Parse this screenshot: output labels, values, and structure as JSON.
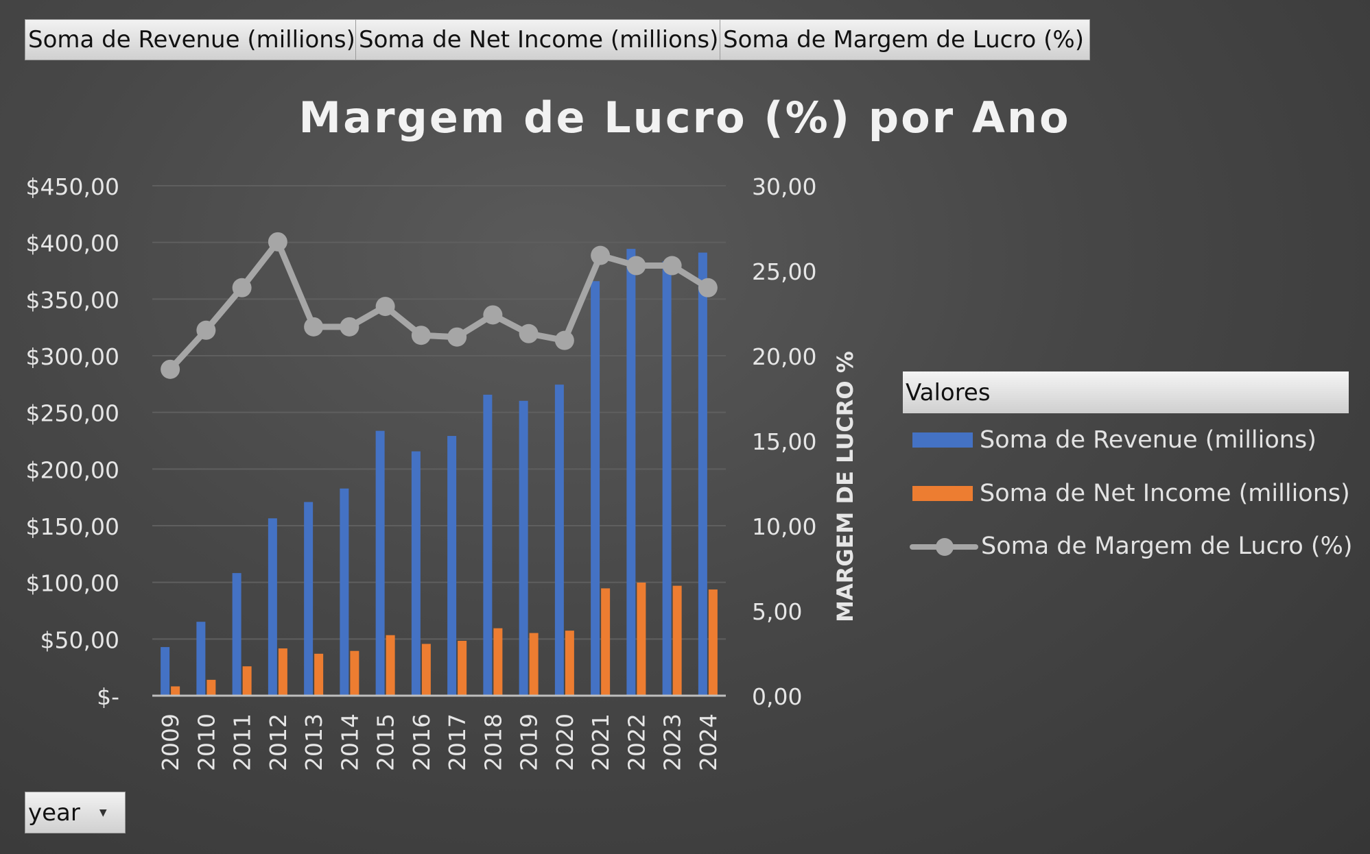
{
  "field_buttons": [
    {
      "label": "Soma de Revenue (millions)"
    },
    {
      "label": "Soma de Net Income (millions)"
    },
    {
      "label": "Soma de Margem de Lucro (%)"
    }
  ],
  "legend": {
    "header": "Valores",
    "items": [
      {
        "label": "Soma de Revenue (millions)",
        "color": "#4472C4"
      },
      {
        "label": "Soma de Net Income (millions)",
        "color": "#ED7D31"
      },
      {
        "label": "Soma de Margem de Lucro (%)",
        "color": "#A6A6A6"
      }
    ]
  },
  "filter": {
    "label": "year"
  },
  "chart_data": {
    "type": "bar",
    "title": "Margem de Lucro (%) por Ano",
    "xlabel": "",
    "ylabel": "",
    "y2label": "MARGEM DE LUCRO %",
    "categories": [
      "2009",
      "2010",
      "2011",
      "2012",
      "2013",
      "2014",
      "2015",
      "2016",
      "2017",
      "2018",
      "2019",
      "2020",
      "2021",
      "2022",
      "2023",
      "2024"
    ],
    "ylim": [
      0,
      450
    ],
    "y2lim": [
      0,
      30
    ],
    "y_ticks": [
      "$-",
      "$50,00",
      "$100,00",
      "$150,00",
      "$200,00",
      "$250,00",
      "$300,00",
      "$350,00",
      "$400,00",
      "$450,00"
    ],
    "y2_ticks": [
      "0,00",
      "5,00",
      "10,00",
      "15,00",
      "20,00",
      "25,00",
      "30,00"
    ],
    "grid": true,
    "legend_position": "right",
    "series": [
      {
        "name": "Soma de Revenue (millions)",
        "type": "bar",
        "axis": "left",
        "color": "#4472C4",
        "values": [
          42.9,
          65.2,
          108.2,
          156.5,
          170.9,
          182.8,
          233.7,
          215.6,
          229.2,
          265.6,
          260.2,
          274.5,
          365.8,
          394.3,
          383.3,
          391.0
        ]
      },
      {
        "name": "Soma de Net Income (millions)",
        "type": "bar",
        "axis": "left",
        "color": "#ED7D31",
        "values": [
          8.2,
          14.0,
          25.9,
          41.7,
          37.0,
          39.5,
          53.4,
          45.7,
          48.4,
          59.5,
          55.3,
          57.4,
          94.7,
          99.8,
          97.0,
          93.7
        ]
      },
      {
        "name": "Soma de Margem de Lucro (%)",
        "type": "line",
        "axis": "right",
        "color": "#A6A6A6",
        "values": [
          19.2,
          21.5,
          24.0,
          26.7,
          21.7,
          21.7,
          22.9,
          21.2,
          21.1,
          22.4,
          21.3,
          20.9,
          25.9,
          25.3,
          25.3,
          24.0
        ]
      }
    ]
  }
}
